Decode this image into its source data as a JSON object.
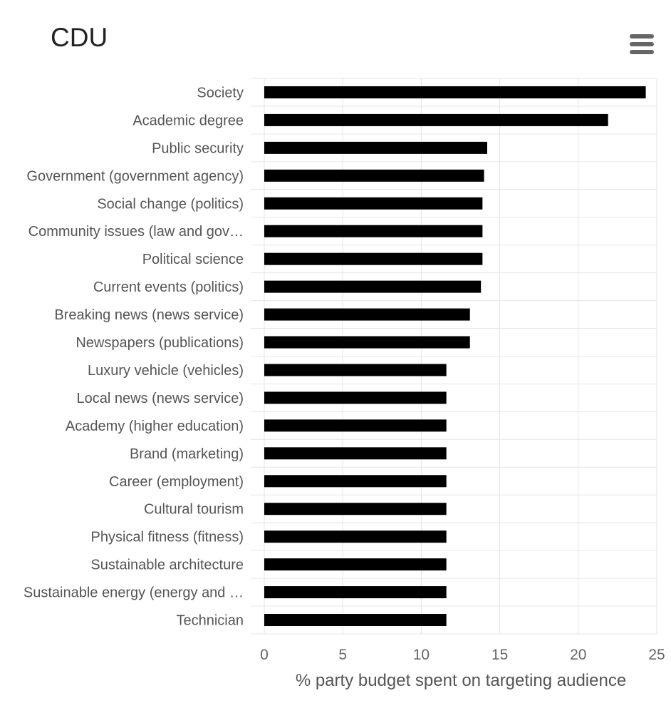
{
  "chart_data": {
    "type": "bar",
    "orientation": "horizontal",
    "title": "CDU",
    "xlabel": "% party budget spent on targeting audience",
    "ylabel": "",
    "xlim": [
      0,
      25
    ],
    "xticks": [
      0,
      5,
      10,
      15,
      20,
      25
    ],
    "grid": true,
    "bar_color": "#000000",
    "categories": [
      "Society",
      "Academic degree",
      "Public security",
      "Government (government agency)",
      "Social change (politics)",
      "Community issues (law and gov…",
      "Political science",
      "Current events (politics)",
      "Breaking news (news service)",
      "Newspapers (publications)",
      "Luxury vehicle (vehicles)",
      "Local news (news service)",
      "Academy (higher education)",
      "Brand (marketing)",
      "Career (employment)",
      "Cultural tourism",
      "Physical fitness (fitness)",
      "Sustainable architecture",
      "Sustainable energy (energy and …",
      "Technician"
    ],
    "values": [
      24.3,
      21.9,
      14.2,
      14.0,
      13.9,
      13.9,
      13.9,
      13.8,
      13.1,
      13.1,
      11.6,
      11.6,
      11.6,
      11.6,
      11.6,
      11.6,
      11.6,
      11.6,
      11.6,
      11.6
    ]
  },
  "menu": {
    "icon": "hamburger-menu-icon"
  }
}
